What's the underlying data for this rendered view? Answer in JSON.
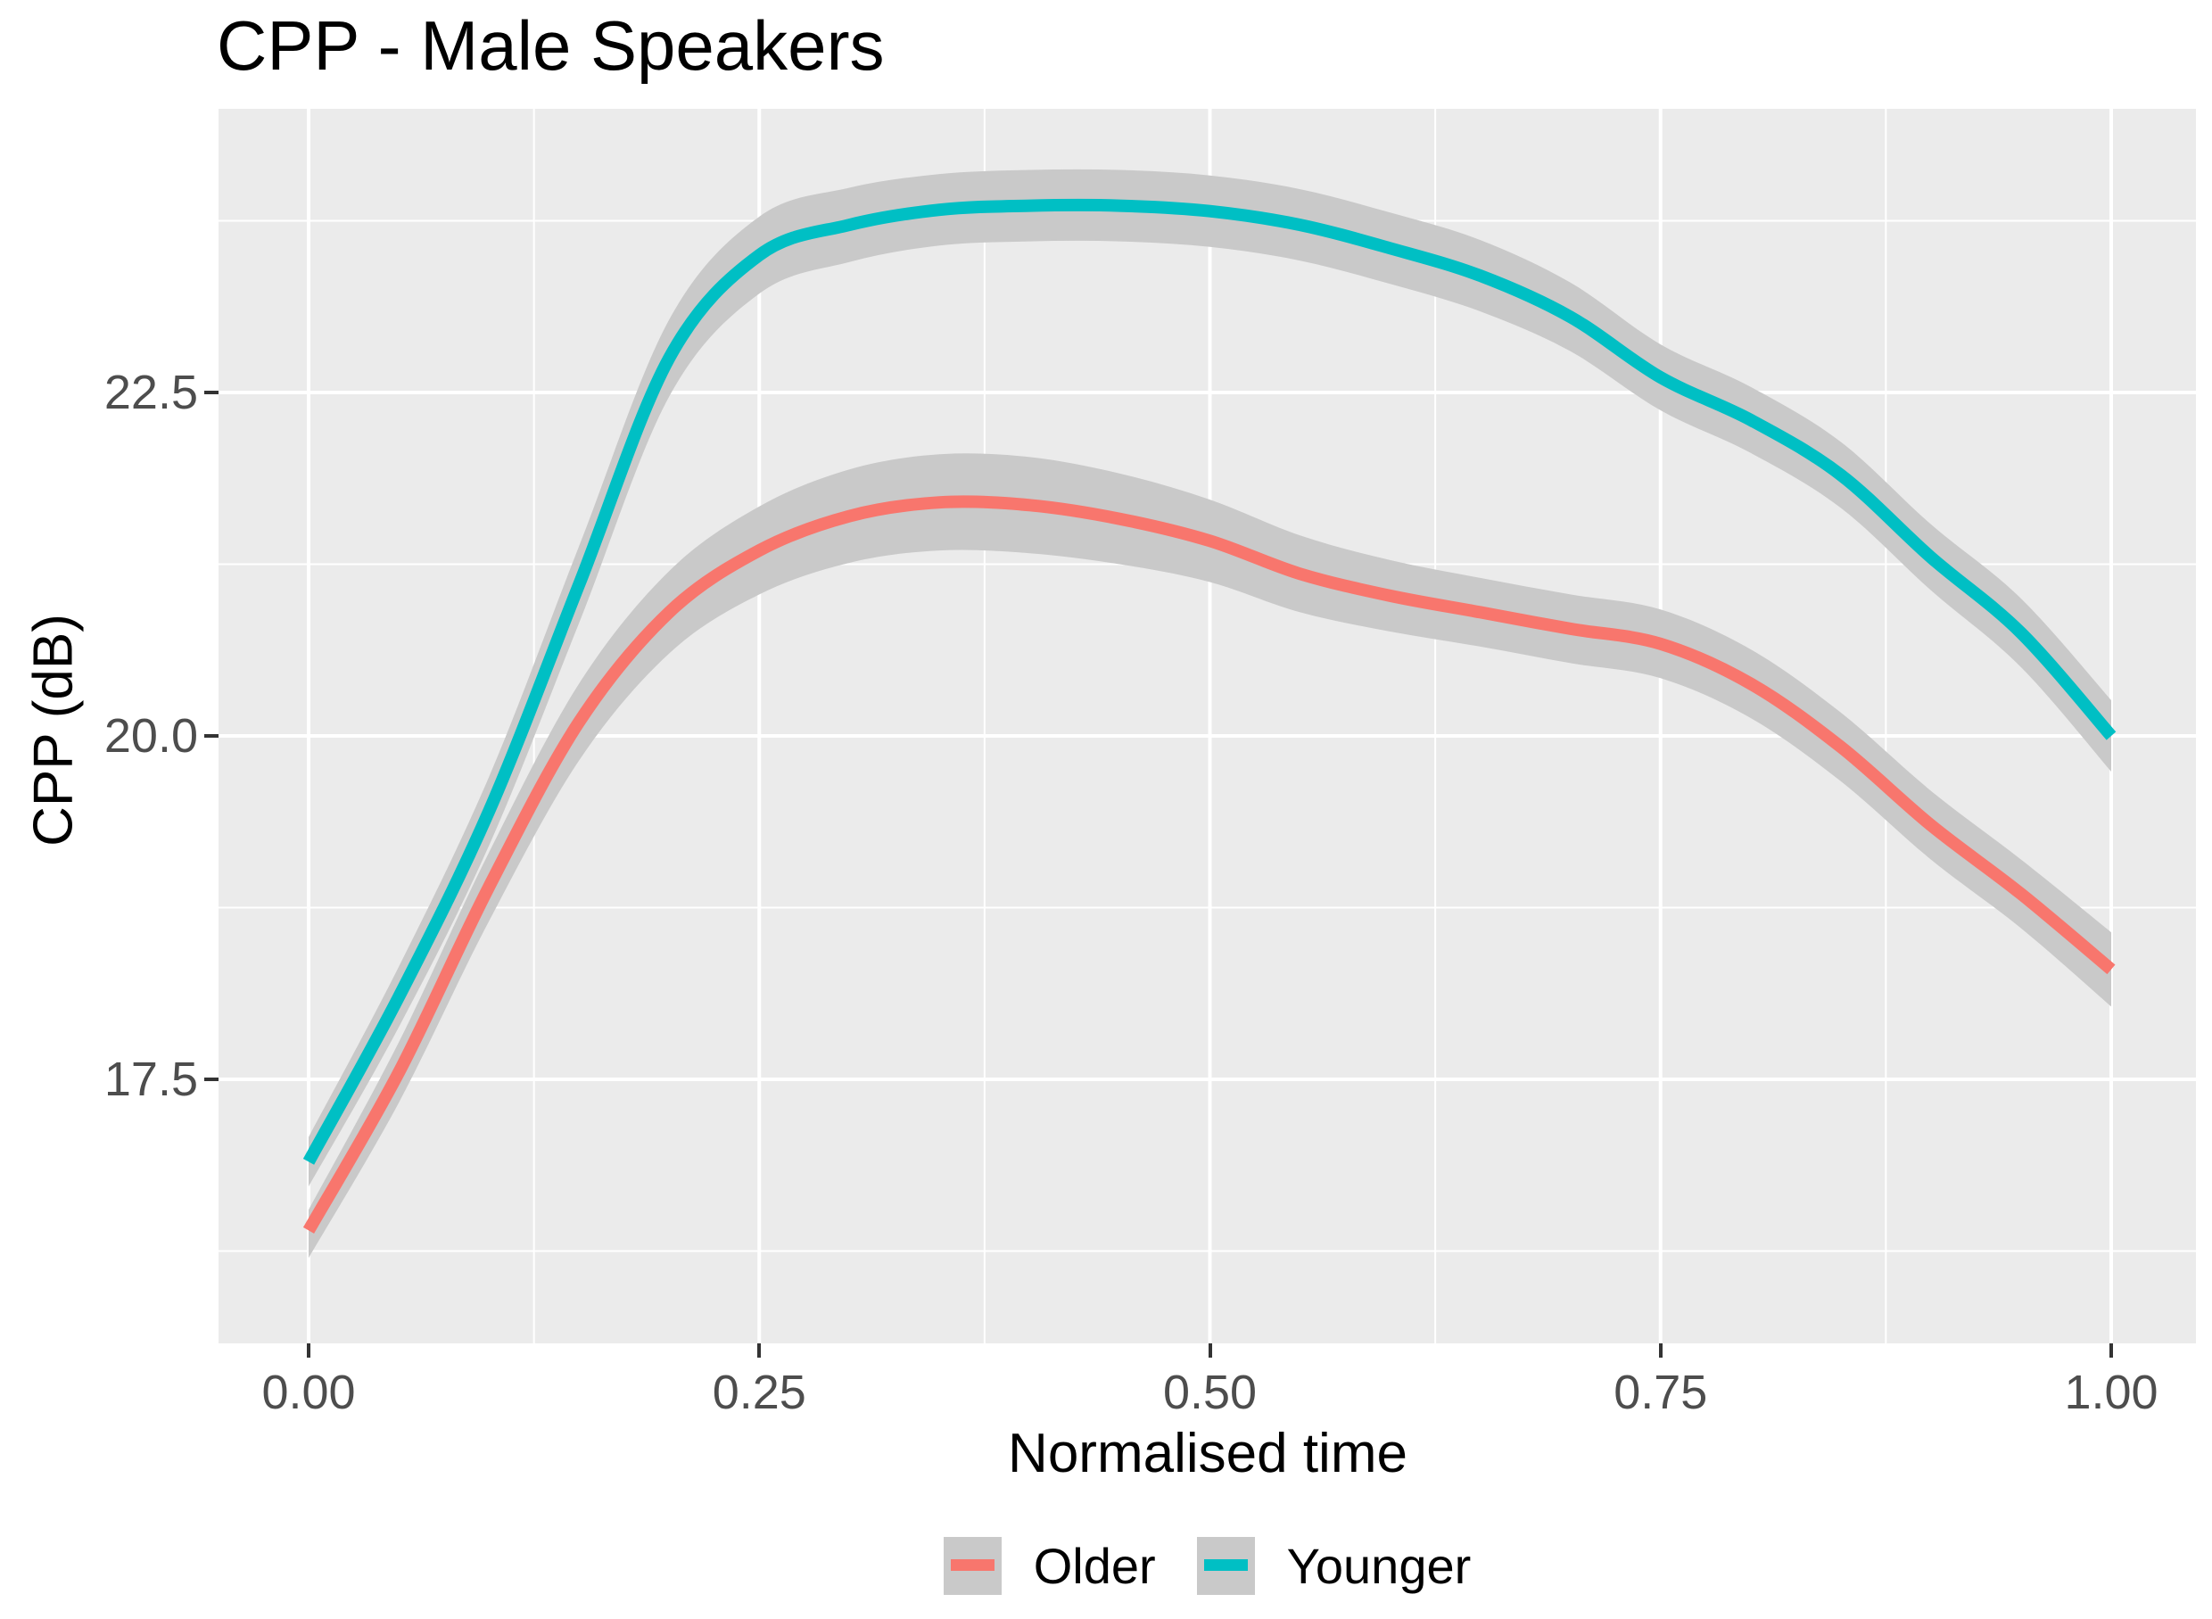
{
  "title": "CPP - Male Speakers",
  "x_axis": {
    "label": "Normalised time",
    "tick_labels": [
      "0.00",
      "0.25",
      "0.50",
      "0.75",
      "1.00"
    ],
    "tick_values": [
      0,
      0.25,
      0.5,
      0.75,
      1
    ],
    "minor_values": [
      0.125,
      0.375,
      0.625,
      0.875
    ],
    "domain": [
      0,
      1
    ]
  },
  "y_axis": {
    "label": "CPP (dB)",
    "tick_labels": [
      "17.5",
      "20.0",
      "22.5"
    ],
    "tick_values": [
      17.5,
      20.0,
      22.5
    ],
    "minor_values": [
      16.25,
      18.75,
      21.25,
      23.75
    ],
    "visible_range": [
      15.58,
      24.56
    ]
  },
  "legend": {
    "items": [
      {
        "label": "Older",
        "color": "#F8766D"
      },
      {
        "label": "Younger",
        "color": "#00BFC4"
      }
    ]
  },
  "colors": {
    "panel_background": "#EBEBEB",
    "grid_major": "#FFFFFF",
    "grid_minor": "#FFFFFF",
    "ribbon": "#C9C9C9",
    "older_line": "#F8766D",
    "younger_line": "#00BFC4",
    "tick_text": "#4d4d4d",
    "title_text": "#000000"
  },
  "chart_data": {
    "type": "line",
    "title": "CPP - Male Speakers",
    "xlabel": "Normalised time",
    "ylabel": "CPP (dB)",
    "x_range": [
      0,
      1
    ],
    "y_ticks": [
      17.5,
      20.0,
      22.5
    ],
    "legend_position": "bottom",
    "grid": "major-and-minor white on gray panel (ggplot style)",
    "ribbon_note": "gray confidence bands around each smoothed line",
    "series": [
      {
        "name": "Older",
        "color": "#F8766D",
        "points": [
          [
            0.0,
            16.4
          ],
          [
            0.05,
            17.55
          ],
          [
            0.1,
            18.9
          ],
          [
            0.15,
            20.1
          ],
          [
            0.2,
            20.9
          ],
          [
            0.25,
            21.35
          ],
          [
            0.3,
            21.6
          ],
          [
            0.35,
            21.7
          ],
          [
            0.4,
            21.68
          ],
          [
            0.45,
            21.58
          ],
          [
            0.5,
            21.42
          ],
          [
            0.55,
            21.18
          ],
          [
            0.6,
            21.02
          ],
          [
            0.65,
            20.9
          ],
          [
            0.7,
            20.78
          ],
          [
            0.75,
            20.67
          ],
          [
            0.8,
            20.38
          ],
          [
            0.85,
            19.92
          ],
          [
            0.9,
            19.35
          ],
          [
            0.95,
            18.85
          ],
          [
            1.0,
            18.3
          ]
        ],
        "ribbon": [
          [
            0.0,
            16.2,
            16.55
          ],
          [
            0.05,
            17.33,
            17.77
          ],
          [
            0.1,
            18.65,
            19.15
          ],
          [
            0.15,
            19.82,
            20.38
          ],
          [
            0.2,
            20.6,
            21.2
          ],
          [
            0.25,
            21.03,
            21.67
          ],
          [
            0.3,
            21.26,
            21.94
          ],
          [
            0.35,
            21.35,
            22.05
          ],
          [
            0.4,
            21.33,
            22.03
          ],
          [
            0.45,
            21.25,
            21.91
          ],
          [
            0.5,
            21.12,
            21.72
          ],
          [
            0.55,
            20.9,
            21.46
          ],
          [
            0.6,
            20.76,
            21.28
          ],
          [
            0.65,
            20.65,
            21.15
          ],
          [
            0.7,
            20.53,
            21.03
          ],
          [
            0.75,
            20.42,
            20.92
          ],
          [
            0.8,
            20.13,
            20.63
          ],
          [
            0.85,
            19.67,
            20.17
          ],
          [
            0.9,
            19.1,
            19.6
          ],
          [
            0.95,
            18.6,
            19.1
          ],
          [
            1.0,
            18.03,
            18.57
          ]
        ]
      },
      {
        "name": "Younger",
        "color": "#00BFC4",
        "points": [
          [
            0.0,
            16.9
          ],
          [
            0.05,
            18.1
          ],
          [
            0.1,
            19.45
          ],
          [
            0.15,
            21.1
          ],
          [
            0.2,
            22.75
          ],
          [
            0.25,
            23.5
          ],
          [
            0.3,
            23.72
          ],
          [
            0.35,
            23.83
          ],
          [
            0.4,
            23.86
          ],
          [
            0.45,
            23.86
          ],
          [
            0.5,
            23.82
          ],
          [
            0.55,
            23.72
          ],
          [
            0.6,
            23.55
          ],
          [
            0.65,
            23.35
          ],
          [
            0.7,
            23.05
          ],
          [
            0.75,
            22.61
          ],
          [
            0.8,
            22.3
          ],
          [
            0.85,
            21.9
          ],
          [
            0.9,
            21.3
          ],
          [
            0.95,
            20.75
          ],
          [
            1.0,
            20.0
          ]
        ],
        "ribbon": [
          [
            0.0,
            16.72,
            17.08
          ],
          [
            0.05,
            17.88,
            18.32
          ],
          [
            0.1,
            19.2,
            19.7
          ],
          [
            0.15,
            20.82,
            21.38
          ],
          [
            0.2,
            22.47,
            23.03
          ],
          [
            0.25,
            23.22,
            23.78
          ],
          [
            0.3,
            23.45,
            23.99
          ],
          [
            0.35,
            23.57,
            24.09
          ],
          [
            0.4,
            23.6,
            24.12
          ],
          [
            0.45,
            23.6,
            24.12
          ],
          [
            0.5,
            23.56,
            24.08
          ],
          [
            0.55,
            23.46,
            23.98
          ],
          [
            0.6,
            23.29,
            23.81
          ],
          [
            0.65,
            23.09,
            23.61
          ],
          [
            0.7,
            22.8,
            23.3
          ],
          [
            0.75,
            22.37,
            22.85
          ],
          [
            0.8,
            22.06,
            22.54
          ],
          [
            0.85,
            21.66,
            22.14
          ],
          [
            0.9,
            21.06,
            21.54
          ],
          [
            0.95,
            20.5,
            21.0
          ],
          [
            1.0,
            19.74,
            20.26
          ]
        ]
      }
    ]
  }
}
